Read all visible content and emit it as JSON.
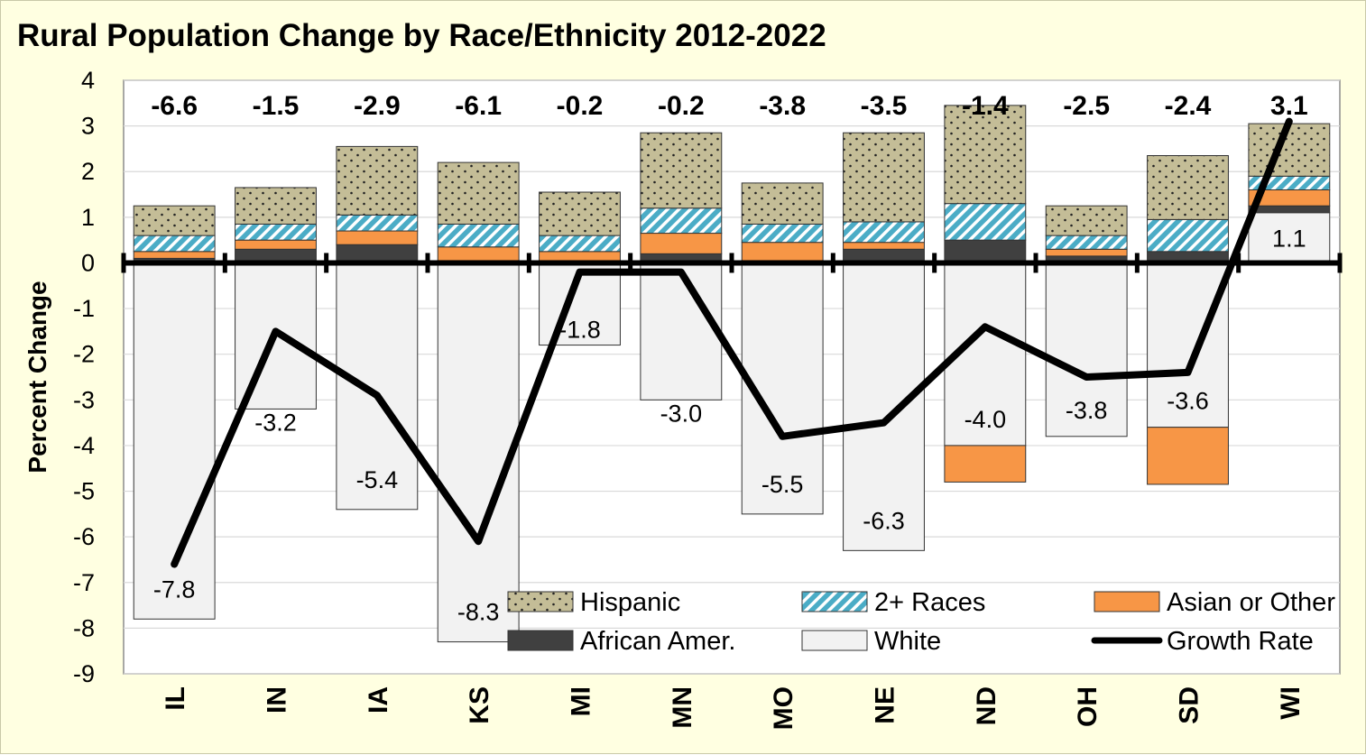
{
  "chart_data": {
    "type": "bar",
    "title": "Rural Population Change by Race/Ethnicity 2012-2022",
    "ylabel": "Percent Change",
    "xlabel": "",
    "ylim": [
      -9,
      4
    ],
    "yticks": [
      4,
      3,
      2,
      1,
      0,
      -1,
      -2,
      -3,
      -4,
      -5,
      -6,
      -7,
      -8,
      -9
    ],
    "stacked": true,
    "grid": true,
    "legend_position": "bottom-inside",
    "categories": [
      "IL",
      "IN",
      "IA",
      "KS",
      "MI",
      "MN",
      "MO",
      "NE",
      "ND",
      "OH",
      "SD",
      "WI"
    ],
    "series": [
      {
        "name": "White",
        "color": "#F2F2F2",
        "pattern": "solid",
        "values": [
          -7.8,
          -3.2,
          -5.4,
          -8.3,
          -1.8,
          -3.0,
          -5.5,
          -6.3,
          -4.0,
          -3.8,
          -3.6,
          1.1
        ]
      },
      {
        "name": "African Amer.",
        "color": "#404040",
        "pattern": "solid",
        "values": [
          0.1,
          0.3,
          0.4,
          0.05,
          0.05,
          0.2,
          0.05,
          0.3,
          0.5,
          0.15,
          0.25,
          0.15
        ]
      },
      {
        "name": "Asian or Other",
        "color": "#F79646",
        "pattern": "solid",
        "values": [
          0.15,
          0.2,
          0.3,
          0.3,
          0.2,
          0.45,
          0.4,
          0.15,
          -0.8,
          0.15,
          -1.25,
          0.35
        ]
      },
      {
        "name": "2+ Races",
        "color": "#4BACC6",
        "pattern": "diagonal-stripes",
        "values": [
          0.35,
          0.35,
          0.35,
          0.5,
          0.35,
          0.55,
          0.4,
          0.45,
          0.8,
          0.3,
          0.7,
          0.3
        ]
      },
      {
        "name": "Hispanic",
        "color": "#C4BD97",
        "pattern": "dots",
        "values": [
          0.65,
          0.8,
          1.5,
          1.35,
          0.95,
          1.65,
          0.9,
          1.95,
          2.15,
          0.65,
          1.4,
          1.15
        ]
      },
      {
        "name": "Growth Rate",
        "type": "line",
        "color": "#000000",
        "values": [
          -6.6,
          -1.5,
          -2.9,
          -6.1,
          -0.2,
          -0.2,
          -3.8,
          -3.5,
          -1.4,
          -2.5,
          -2.4,
          3.1
        ]
      }
    ],
    "growth_labels": [
      "-6.6",
      "-1.5",
      "-2.9",
      "-6.1",
      "-0.2",
      "-0.2",
      "-3.8",
      "-3.5",
      "-1.4",
      "-2.5",
      "-2.4",
      "3.1"
    ],
    "white_labels": [
      "-7.8",
      "-3.2",
      "-5.4",
      "-8.3",
      "-1.8",
      "-3.0",
      "-5.5",
      "-6.3",
      "-4.0",
      "-3.8",
      "-3.6",
      "1.1"
    ],
    "legend": [
      {
        "label": "Hispanic",
        "series": "Hispanic"
      },
      {
        "label": "2+ Races",
        "series": "2+ Races"
      },
      {
        "label": "Asian or Other",
        "series": "Asian or Other"
      },
      {
        "label": "African Amer.",
        "series": "African Amer."
      },
      {
        "label": "White",
        "series": "White"
      },
      {
        "label": "Growth Rate",
        "series": "Growth Rate"
      }
    ],
    "colors": {
      "background": "#FFFFE1",
      "plot_background": "#FFFFFF",
      "gridline": "#D9D9D9",
      "axis": "#000000"
    }
  }
}
